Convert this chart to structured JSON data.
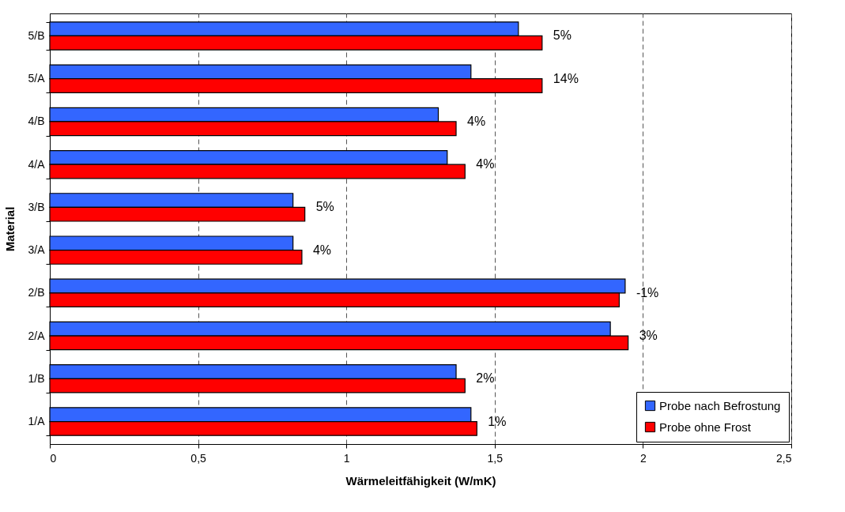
{
  "chart_data": {
    "type": "bar",
    "orientation": "horizontal",
    "xlabel": "Wärmeleitfähigkeit (W/mK)",
    "ylabel": "Material",
    "categories": [
      "5/B",
      "5/A",
      "4/B",
      "4/A",
      "3/B",
      "3/A",
      "2/B",
      "2/A",
      "1/B",
      "1/A"
    ],
    "series": [
      {
        "name": "Probe nach Befrostung",
        "color": "#3366ff",
        "values": [
          1.58,
          1.42,
          1.31,
          1.34,
          0.82,
          0.82,
          1.94,
          1.89,
          1.37,
          1.42
        ]
      },
      {
        "name": "Probe ohne Frost",
        "color": "#ff0000",
        "values": [
          1.66,
          1.66,
          1.37,
          1.4,
          0.86,
          0.85,
          1.92,
          1.95,
          1.4,
          1.44
        ]
      }
    ],
    "xlim": [
      0,
      2.5
    ],
    "xticks": [
      0,
      {
        "value": 0.5,
        "label": "0,5"
      },
      1,
      {
        "value": 1.5,
        "label": "1,5"
      },
      2,
      {
        "value": 2.5,
        "label": "2,5"
      }
    ],
    "grid": "x",
    "legend": "bottom right",
    "annotations": [
      {
        "text": "5%",
        "x": 1.66,
        "y": "5/B"
      },
      {
        "text": "14%",
        "x": 1.66,
        "y": "5/A"
      },
      {
        "text": "4%",
        "x": 1.37,
        "y": "4/B"
      },
      {
        "text": "4%",
        "x": 1.4,
        "y": "4/A"
      },
      {
        "text": "5%",
        "x": 0.86,
        "y": "3/B"
      },
      {
        "text": "4%",
        "x": 0.85,
        "y": "3/A"
      },
      {
        "text": "-1%",
        "x": 1.94,
        "y": "2/B"
      },
      {
        "text": "3%",
        "x": 1.95,
        "y": "2/A"
      },
      {
        "text": "2%",
        "x": 1.4,
        "y": "1/B"
      },
      {
        "text": "1%",
        "x": 1.44,
        "y": "1/A"
      }
    ]
  }
}
